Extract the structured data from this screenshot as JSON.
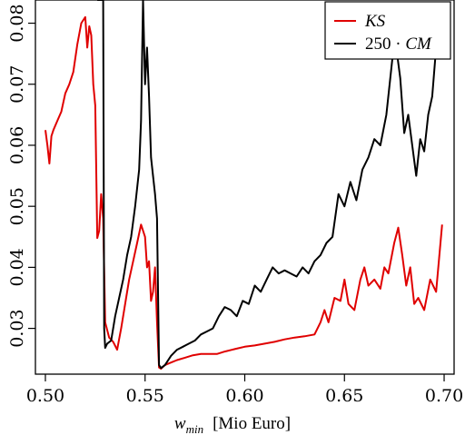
{
  "chart_data": {
    "type": "line",
    "xlabel_main": "w",
    "xlabel_sub": "min",
    "xlabel_unit": "[Mio Euro]",
    "ylabel": "",
    "xlim": [
      0.495,
      0.705
    ],
    "ylim": [
      0.0225,
      0.0838
    ],
    "x_ticks": [
      0.5,
      0.55,
      0.6,
      0.65,
      0.7
    ],
    "x_tick_labels": [
      "0.50",
      "0.55",
      "0.60",
      "0.65",
      "0.70"
    ],
    "y_ticks": [
      0.03,
      0.04,
      0.05,
      0.06,
      0.07,
      0.08
    ],
    "y_tick_labels": [
      "0.03",
      "0.04",
      "0.05",
      "0.06",
      "0.07",
      "0.08"
    ],
    "legend_position": "top-right",
    "legend": [
      {
        "label": "KS",
        "color": "#e00000"
      },
      {
        "label_pre": "250 · ",
        "label_it": "CM",
        "color": "#000000"
      }
    ],
    "series": [
      {
        "name": "KS",
        "color": "#e00000",
        "x": [
          0.5,
          0.501,
          0.502,
          0.503,
          0.504,
          0.506,
          0.508,
          0.51,
          0.512,
          0.514,
          0.516,
          0.518,
          0.52,
          0.521,
          0.522,
          0.523,
          0.524,
          0.525,
          0.526,
          0.527,
          0.528,
          0.529,
          0.53,
          0.532,
          0.534,
          0.536,
          0.538,
          0.54,
          0.542,
          0.544,
          0.546,
          0.548,
          0.55,
          0.551,
          0.552,
          0.553,
          0.554,
          0.555,
          0.556,
          0.557,
          0.558,
          0.56,
          0.563,
          0.566,
          0.57,
          0.574,
          0.578,
          0.582,
          0.586,
          0.59,
          0.595,
          0.6,
          0.605,
          0.61,
          0.615,
          0.62,
          0.625,
          0.63,
          0.635,
          0.638,
          0.64,
          0.642,
          0.645,
          0.648,
          0.65,
          0.652,
          0.655,
          0.658,
          0.66,
          0.662,
          0.665,
          0.668,
          0.67,
          0.672,
          0.675,
          0.677,
          0.679,
          0.681,
          0.683,
          0.685,
          0.687,
          0.69,
          0.693,
          0.696,
          0.699
        ],
        "values": [
          0.0625,
          0.06,
          0.057,
          0.0615,
          0.0625,
          0.064,
          0.0655,
          0.0685,
          0.07,
          0.072,
          0.0765,
          0.08,
          0.081,
          0.076,
          0.0795,
          0.078,
          0.07,
          0.0665,
          0.0448,
          0.046,
          0.052,
          0.048,
          0.031,
          0.0285,
          0.0278,
          0.0265,
          0.03,
          0.034,
          0.038,
          0.041,
          0.044,
          0.047,
          0.045,
          0.04,
          0.041,
          0.0345,
          0.036,
          0.04,
          0.031,
          0.0236,
          0.0234,
          0.024,
          0.0244,
          0.0248,
          0.0252,
          0.0256,
          0.0258,
          0.0258,
          0.0258,
          0.0262,
          0.0266,
          0.027,
          0.0272,
          0.0275,
          0.0278,
          0.0282,
          0.0285,
          0.0287,
          0.029,
          0.031,
          0.033,
          0.031,
          0.035,
          0.0345,
          0.038,
          0.034,
          0.033,
          0.038,
          0.04,
          0.037,
          0.038,
          0.0365,
          0.04,
          0.039,
          0.044,
          0.0465,
          0.042,
          0.037,
          0.04,
          0.034,
          0.035,
          0.033,
          0.038,
          0.036,
          0.047
        ]
      },
      {
        "name": "250 · CM",
        "color": "#000000",
        "x": [
          0.526,
          0.527,
          0.528,
          0.5285,
          0.529,
          0.5295,
          0.53,
          0.531,
          0.533,
          0.535,
          0.537,
          0.539,
          0.541,
          0.543,
          0.545,
          0.547,
          0.548,
          0.549,
          0.55,
          0.551,
          0.552,
          0.553,
          0.554,
          0.555,
          0.556,
          0.557,
          0.558,
          0.56,
          0.563,
          0.566,
          0.569,
          0.572,
          0.575,
          0.578,
          0.581,
          0.584,
          0.587,
          0.59,
          0.593,
          0.596,
          0.599,
          0.602,
          0.605,
          0.608,
          0.611,
          0.614,
          0.617,
          0.62,
          0.623,
          0.626,
          0.629,
          0.632,
          0.635,
          0.638,
          0.641,
          0.644,
          0.647,
          0.65,
          0.653,
          0.656,
          0.659,
          0.662,
          0.665,
          0.668,
          0.671,
          0.674,
          0.676,
          0.678,
          0.68,
          0.682,
          0.684,
          0.686,
          0.688,
          0.69,
          0.692,
          0.694,
          0.696,
          0.698
        ],
        "values": [
          0.0838,
          0.0838,
          0.0838,
          0.0838,
          0.0838,
          0.03,
          0.0268,
          0.0275,
          0.028,
          0.032,
          0.035,
          0.038,
          0.042,
          0.045,
          0.05,
          0.056,
          0.064,
          0.0838,
          0.07,
          0.076,
          0.068,
          0.058,
          0.055,
          0.052,
          0.048,
          0.024,
          0.0235,
          0.024,
          0.0255,
          0.0265,
          0.027,
          0.0275,
          0.028,
          0.029,
          0.0295,
          0.03,
          0.032,
          0.0335,
          0.033,
          0.032,
          0.0345,
          0.034,
          0.037,
          0.036,
          0.038,
          0.04,
          0.039,
          0.0395,
          0.039,
          0.0385,
          0.04,
          0.039,
          0.041,
          0.042,
          0.044,
          0.045,
          0.052,
          0.05,
          0.054,
          0.051,
          0.056,
          0.058,
          0.061,
          0.06,
          0.065,
          0.074,
          0.076,
          0.071,
          0.062,
          0.065,
          0.06,
          0.055,
          0.061,
          0.059,
          0.065,
          0.068,
          0.076,
          0.079
        ]
      }
    ]
  }
}
